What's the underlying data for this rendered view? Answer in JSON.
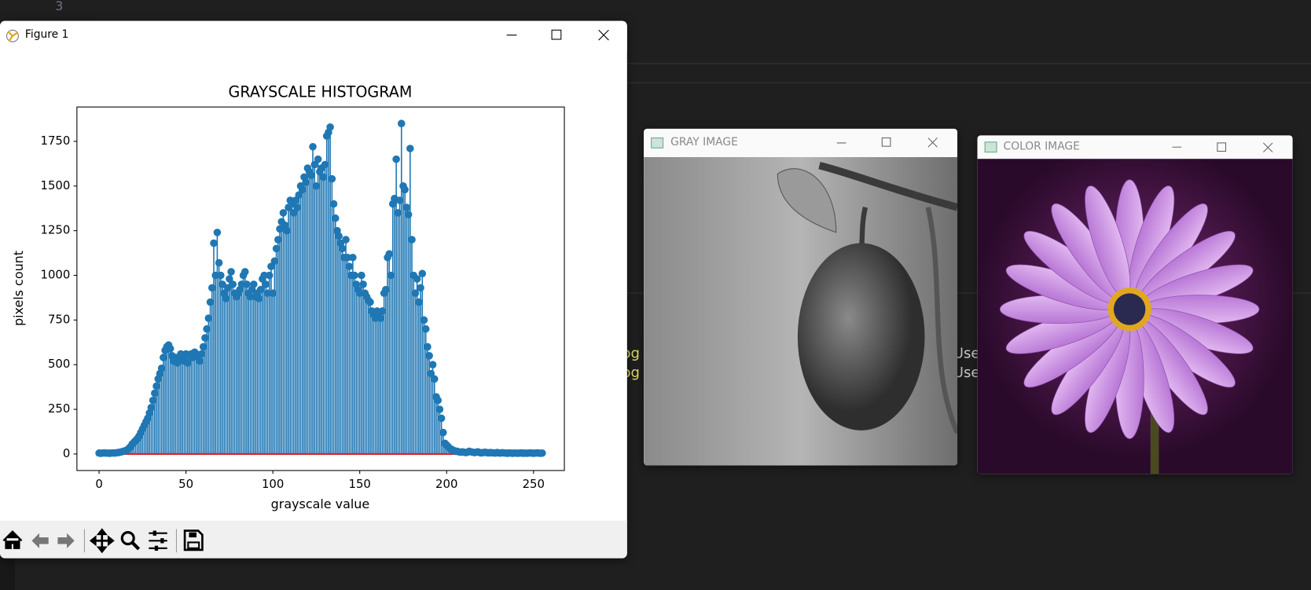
{
  "editor": {
    "line_number": "3",
    "fragments_left": [
      "og",
      "og"
    ],
    "fragments_right": [
      "Use",
      "Use"
    ]
  },
  "figure_window": {
    "title": "Figure 1"
  },
  "gray_window": {
    "title": "GRAY IMAGE"
  },
  "color_window": {
    "title": "COLOR IMAGE"
  },
  "chart_data": {
    "type": "stem",
    "title": "GRAYSCALE HISTOGRAM",
    "x_label": "grayscale value",
    "y_label": "pixels count",
    "color": "#1f77b4",
    "baseline_color": "#d62728",
    "xlim": [
      -12.75,
      267.75
    ],
    "xticks": [
      0,
      50,
      100,
      150,
      200,
      250
    ],
    "ylim": [
      -92.5,
      1942.5
    ],
    "yticks": [
      0,
      250,
      500,
      750,
      1000,
      1250,
      1500,
      1750
    ],
    "x": [
      0,
      1,
      2,
      3,
      4,
      5,
      6,
      7,
      8,
      9,
      10,
      11,
      12,
      13,
      14,
      15,
      16,
      17,
      18,
      19,
      20,
      21,
      22,
      23,
      24,
      25,
      26,
      27,
      28,
      29,
      30,
      31,
      32,
      33,
      34,
      35,
      36,
      37,
      38,
      39,
      40,
      41,
      42,
      43,
      44,
      45,
      46,
      47,
      48,
      49,
      50,
      51,
      52,
      53,
      54,
      55,
      56,
      57,
      58,
      59,
      60,
      61,
      62,
      63,
      64,
      65,
      66,
      67,
      68,
      69,
      70,
      71,
      72,
      73,
      74,
      75,
      76,
      77,
      78,
      79,
      80,
      81,
      82,
      83,
      84,
      85,
      86,
      87,
      88,
      89,
      90,
      91,
      92,
      93,
      94,
      95,
      96,
      97,
      98,
      99,
      100,
      101,
      102,
      103,
      104,
      105,
      106,
      107,
      108,
      109,
      110,
      111,
      112,
      113,
      114,
      115,
      116,
      117,
      118,
      119,
      120,
      121,
      122,
      123,
      124,
      125,
      126,
      127,
      128,
      129,
      130,
      131,
      132,
      133,
      134,
      135,
      136,
      137,
      138,
      139,
      140,
      141,
      142,
      143,
      144,
      145,
      146,
      147,
      148,
      149,
      150,
      151,
      152,
      153,
      154,
      155,
      156,
      157,
      158,
      159,
      160,
      161,
      162,
      163,
      164,
      165,
      166,
      167,
      168,
      169,
      170,
      171,
      172,
      173,
      174,
      175,
      176,
      177,
      178,
      179,
      180,
      181,
      182,
      183,
      184,
      185,
      186,
      187,
      188,
      189,
      190,
      191,
      192,
      193,
      194,
      195,
      196,
      197,
      198,
      199,
      200,
      201,
      202,
      203,
      204,
      205,
      206,
      207,
      208,
      209,
      210,
      211,
      212,
      213,
      214,
      215,
      216,
      217,
      218,
      219,
      220,
      221,
      222,
      223,
      224,
      225,
      226,
      227,
      228,
      229,
      230,
      231,
      232,
      233,
      234,
      235,
      236,
      237,
      238,
      239,
      240,
      241,
      242,
      243,
      244,
      245,
      246,
      247,
      248,
      249,
      250,
      251,
      252,
      253,
      254,
      255
    ],
    "values": [
      5,
      4,
      5,
      6,
      5,
      5,
      4,
      5,
      6,
      5,
      7,
      8,
      10,
      12,
      15,
      18,
      22,
      30,
      40,
      55,
      65,
      75,
      85,
      100,
      120,
      140,
      160,
      180,
      200,
      230,
      260,
      300,
      340,
      380,
      420,
      450,
      480,
      540,
      580,
      600,
      610,
      590,
      550,
      520,
      540,
      510,
      520,
      560,
      540,
      520,
      560,
      510,
      550,
      560,
      540,
      570,
      560,
      540,
      520,
      560,
      600,
      650,
      700,
      760,
      850,
      930,
      1180,
      1000,
      1240,
      1070,
      1000,
      950,
      900,
      870,
      930,
      980,
      1020,
      950,
      900,
      880,
      900,
      920,
      950,
      1000,
      1020,
      950,
      900,
      880,
      920,
      950,
      880,
      900,
      870,
      920,
      980,
      1000,
      950,
      900,
      1000,
      1050,
      900,
      1080,
      1150,
      1200,
      1260,
      1300,
      1350,
      1280,
      1250,
      1380,
      1420,
      1400,
      1350,
      1420,
      1380,
      1450,
      1500,
      1480,
      1550,
      1520,
      1600,
      1580,
      1560,
      1720,
      1620,
      1500,
      1650,
      1580,
      1600,
      1550,
      1620,
      1780,
      1800,
      1830,
      1540,
      1400,
      1320,
      1250,
      1220,
      1180,
      1150,
      1100,
      1200,
      1100,
      1050,
      1000,
      1100,
      1000,
      950,
      920,
      900,
      1000,
      950,
      900,
      880,
      860,
      850,
      800,
      780,
      760,
      800,
      780,
      760,
      800,
      900,
      920,
      1100,
      1120,
      1000,
      1400,
      1430,
      1650,
      1350,
      1420,
      1850,
      1500,
      1480,
      1380,
      1340,
      1710,
      1200,
      1000,
      900,
      980,
      850,
      930,
      1010,
      750,
      700,
      600,
      550,
      450,
      500,
      420,
      320,
      300,
      250,
      200,
      120,
      60,
      50,
      40,
      30,
      25,
      20,
      15,
      15,
      12,
      10,
      12,
      10,
      8,
      10,
      15,
      12,
      10,
      8,
      10,
      12,
      8,
      6,
      8,
      10,
      8,
      6,
      8,
      7,
      6,
      5,
      8,
      6,
      5,
      7,
      6,
      5,
      4,
      6,
      5,
      4,
      5,
      5,
      4,
      5,
      6,
      4,
      5,
      4,
      5,
      6,
      5,
      4,
      5,
      6,
      5,
      4,
      5
    ]
  }
}
